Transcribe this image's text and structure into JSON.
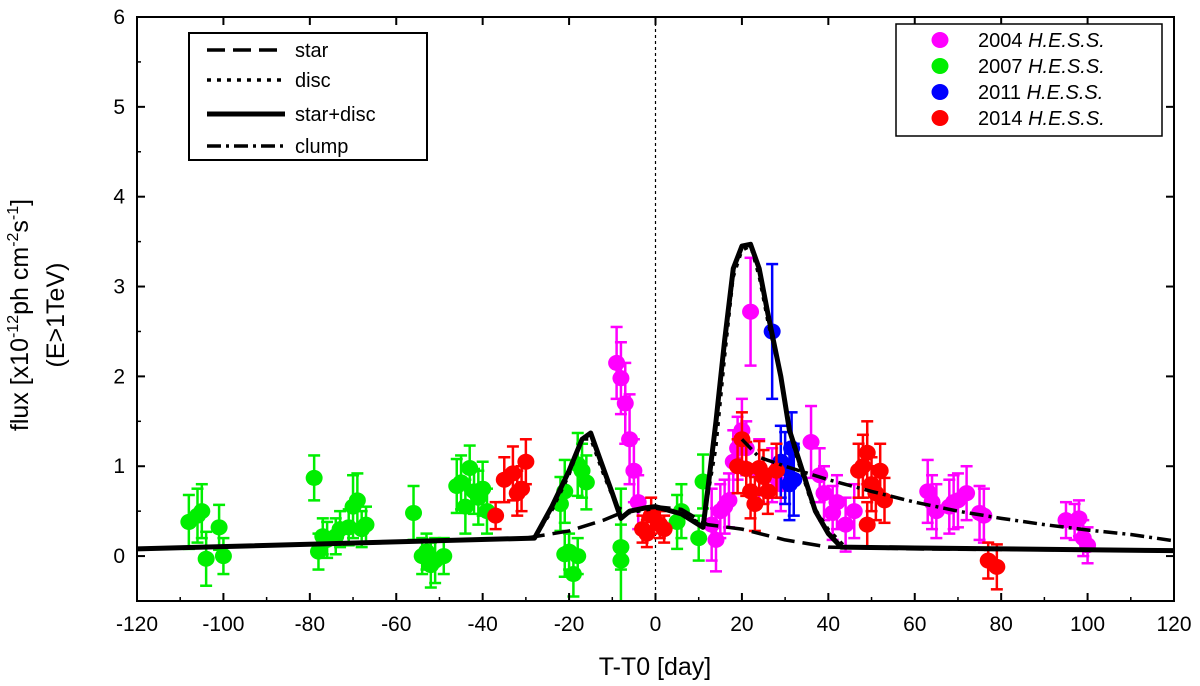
{
  "chart_data": {
    "type": "scatter",
    "xlabel": "T-T0 [day]",
    "ylabel_line1_parts": [
      "flux [x10",
      "-12",
      "ph cm",
      "-2",
      "s",
      "-1",
      "]"
    ],
    "ylabel_line2": "(E>1TeV)",
    "xlim": [
      -120,
      120
    ],
    "ylim": [
      -0.5,
      6
    ],
    "xticks": [
      -120,
      -100,
      -80,
      -60,
      -40,
      -20,
      0,
      20,
      40,
      60,
      80,
      100,
      120
    ],
    "yticks": [
      0,
      1,
      2,
      3,
      4,
      5,
      6
    ],
    "vline_x": 0,
    "models_legend": {
      "star": "star",
      "disc": "disc",
      "star_disc": "star+disc",
      "clump": "clump"
    },
    "models": {
      "star": [
        [
          -120,
          0.08
        ],
        [
          -30,
          0.2
        ],
        [
          -20,
          0.28
        ],
        [
          -12,
          0.4
        ],
        [
          -8,
          0.48
        ],
        [
          0,
          0.55
        ],
        [
          6,
          0.52
        ],
        [
          12,
          0.35
        ],
        [
          20,
          0.3
        ],
        [
          30,
          0.18
        ],
        [
          40,
          0.1
        ],
        [
          60,
          0.08
        ],
        [
          120,
          0.06
        ]
      ],
      "disc": [
        [
          -120,
          0.08
        ],
        [
          -28,
          0.2
        ],
        [
          -24,
          0.5
        ],
        [
          -20,
          0.9
        ],
        [
          -17,
          1.3
        ],
        [
          -15,
          1.3
        ],
        [
          -12,
          0.9
        ],
        [
          -9,
          0.55
        ],
        [
          -6,
          0.48
        ],
        [
          0,
          0.53
        ],
        [
          6,
          0.48
        ],
        [
          11,
          0.35
        ],
        [
          14,
          1.2
        ],
        [
          16,
          2.2
        ],
        [
          18,
          3.1
        ],
        [
          20,
          3.4
        ],
        [
          22,
          3.45
        ],
        [
          24,
          3.1
        ],
        [
          26,
          2.6
        ],
        [
          29,
          2.0
        ],
        [
          32,
          1.2
        ],
        [
          36,
          0.6
        ],
        [
          40,
          0.3
        ],
        [
          44,
          0.1
        ],
        [
          60,
          0.08
        ],
        [
          120,
          0.06
        ]
      ],
      "star_disc": [
        [
          -120,
          0.08
        ],
        [
          -28,
          0.2
        ],
        [
          -24,
          0.55
        ],
        [
          -20,
          0.95
        ],
        [
          -17,
          1.3
        ],
        [
          -15,
          1.37
        ],
        [
          -13,
          1.1
        ],
        [
          -10,
          0.7
        ],
        [
          -8,
          0.42
        ],
        [
          -6,
          0.5
        ],
        [
          -2,
          0.54
        ],
        [
          0,
          0.55
        ],
        [
          6,
          0.47
        ],
        [
          11,
          0.32
        ],
        [
          12,
          0.7
        ],
        [
          14,
          1.5
        ],
        [
          16,
          2.4
        ],
        [
          18,
          3.2
        ],
        [
          20,
          3.45
        ],
        [
          22,
          3.47
        ],
        [
          24,
          3.2
        ],
        [
          26,
          2.7
        ],
        [
          29,
          2.0
        ],
        [
          31,
          1.4
        ],
        [
          34,
          0.95
        ],
        [
          37,
          0.5
        ],
        [
          40,
          0.25
        ],
        [
          43,
          0.1
        ],
        [
          60,
          0.09
        ],
        [
          120,
          0.06
        ]
      ],
      "clump": [
        [
          20,
          1.3
        ],
        [
          24,
          1.1
        ],
        [
          30,
          1.0
        ],
        [
          40,
          0.85
        ],
        [
          50,
          0.72
        ],
        [
          60,
          0.6
        ],
        [
          70,
          0.5
        ],
        [
          80,
          0.42
        ],
        [
          90,
          0.35
        ],
        [
          100,
          0.29
        ],
        [
          110,
          0.24
        ],
        [
          120,
          0.17
        ]
      ]
    },
    "series": [
      {
        "name": "2004",
        "name_suffix": "H.E.S.S.",
        "color": "#ff00ff",
        "points": [
          [
            -9,
            2.15,
            0.4
          ],
          [
            -8,
            1.98,
            0.4
          ],
          [
            -7,
            1.7,
            0.45
          ],
          [
            -6,
            1.3,
            0.5
          ],
          [
            -5,
            0.95,
            0.35
          ],
          [
            -4,
            0.6,
            0.3
          ],
          [
            13,
            0.35,
            0.4
          ],
          [
            14,
            0.18,
            0.35
          ],
          [
            15,
            0.5,
            0.3
          ],
          [
            16,
            0.55,
            0.3
          ],
          [
            17,
            0.62,
            0.3
          ],
          [
            18,
            1.05,
            0.35
          ],
          [
            19,
            1.2,
            0.35
          ],
          [
            20,
            1.4,
            0.35
          ],
          [
            21,
            1.2,
            0.3
          ],
          [
            22,
            2.72,
            0.6
          ],
          [
            24,
            0.95,
            0.35
          ],
          [
            27,
            0.9,
            0.3
          ],
          [
            29,
            0.8,
            0.3
          ],
          [
            36,
            1.27,
            0.4
          ],
          [
            38,
            0.9,
            0.3
          ],
          [
            39,
            0.7,
            0.3
          ],
          [
            41,
            0.48,
            0.3
          ],
          [
            42,
            0.6,
            0.3
          ],
          [
            44,
            0.35,
            0.3
          ],
          [
            46,
            0.5,
            0.3
          ],
          [
            63,
            0.72,
            0.35
          ],
          [
            64,
            0.6,
            0.3
          ],
          [
            65,
            0.5,
            0.3
          ],
          [
            68,
            0.55,
            0.3
          ],
          [
            69,
            0.6,
            0.3
          ],
          [
            70,
            0.62,
            0.3
          ],
          [
            72,
            0.7,
            0.3
          ],
          [
            75,
            0.48,
            0.3
          ],
          [
            76,
            0.45,
            0.3
          ],
          [
            95,
            0.4,
            0.2
          ],
          [
            97,
            0.38,
            0.2
          ],
          [
            98,
            0.42,
            0.2
          ],
          [
            99,
            0.2,
            0.2
          ],
          [
            100,
            0.12,
            0.2
          ]
        ]
      },
      {
        "name": "2007",
        "name_suffix": "H.E.S.S.",
        "color": "#00ee00",
        "points": [
          [
            -108,
            0.38,
            0.3
          ],
          [
            -106,
            0.45,
            0.3
          ],
          [
            -105,
            0.5,
            0.3
          ],
          [
            -104,
            -0.03,
            0.3
          ],
          [
            -101,
            0.32,
            0.25
          ],
          [
            -100,
            0.0,
            0.2
          ],
          [
            -79,
            0.87,
            0.25
          ],
          [
            -78,
            0.05,
            0.2
          ],
          [
            -77,
            0.22,
            0.2
          ],
          [
            -76,
            0.18,
            0.2
          ],
          [
            -74,
            0.22,
            0.2
          ],
          [
            -73,
            0.3,
            0.2
          ],
          [
            -71,
            0.32,
            0.2
          ],
          [
            -70,
            0.55,
            0.35
          ],
          [
            -69,
            0.62,
            0.3
          ],
          [
            -68,
            0.3,
            0.2
          ],
          [
            -67,
            0.35,
            0.2
          ],
          [
            -56,
            0.48,
            0.3
          ],
          [
            -54,
            0.0,
            0.2
          ],
          [
            -53,
            0.05,
            0.2
          ],
          [
            -52,
            -0.1,
            0.25
          ],
          [
            -51,
            -0.05,
            0.25
          ],
          [
            -49,
            0.0,
            0.2
          ],
          [
            -46,
            0.78,
            0.3
          ],
          [
            -45,
            0.82,
            0.3
          ],
          [
            -44,
            0.55,
            0.3
          ],
          [
            -43,
            0.98,
            0.25
          ],
          [
            -42,
            0.72,
            0.25
          ],
          [
            -41,
            0.65,
            0.3
          ],
          [
            -40,
            0.75,
            0.3
          ],
          [
            -39,
            0.5,
            0.25
          ],
          [
            -22,
            0.58,
            0.3
          ],
          [
            -21,
            0.72,
            0.35
          ],
          [
            -18,
            1.02,
            0.35
          ],
          [
            -17,
            0.95,
            0.3
          ],
          [
            -16,
            0.82,
            0.3
          ],
          [
            -21,
            0.02,
            0.25
          ],
          [
            -20,
            0.05,
            0.2
          ],
          [
            -19,
            -0.2,
            0.25
          ],
          [
            -18,
            0.0,
            0.2
          ],
          [
            -8,
            0.1,
            0.25
          ],
          [
            -8,
            -0.05,
            0.8
          ],
          [
            5,
            0.38,
            0.3
          ],
          [
            6,
            0.5,
            0.3
          ],
          [
            10,
            0.2,
            0.25
          ],
          [
            11,
            0.83,
            0.3
          ]
        ]
      },
      {
        "name": "2011",
        "name_suffix": "H.E.S.S.",
        "color": "#0000ff",
        "points": [
          [
            27,
            2.5,
            0.75
          ],
          [
            29,
            1.05,
            0.4
          ],
          [
            30,
            0.98,
            0.4
          ],
          [
            31,
            0.8,
            0.4
          ],
          [
            31.5,
            1.2,
            0.4
          ],
          [
            32,
            0.85,
            0.4
          ]
        ]
      },
      {
        "name": "2014",
        "name_suffix": "H.E.S.S.",
        "color": "#ff0000",
        "points": [
          [
            -37,
            0.45,
            0.15
          ],
          [
            -35,
            0.85,
            0.25
          ],
          [
            -33,
            0.92,
            0.3
          ],
          [
            -32,
            0.7,
            0.25
          ],
          [
            -31,
            0.75,
            0.25
          ],
          [
            -30,
            1.05,
            0.25
          ],
          [
            -3,
            0.3,
            0.15
          ],
          [
            -2,
            0.25,
            0.15
          ],
          [
            -1,
            0.45,
            0.2
          ],
          [
            1,
            0.35,
            0.15
          ],
          [
            2,
            0.3,
            0.15
          ],
          [
            19,
            1.0,
            0.3
          ],
          [
            20,
            1.3,
            0.3
          ],
          [
            21,
            0.97,
            0.3
          ],
          [
            22,
            0.72,
            0.3
          ],
          [
            23,
            0.58,
            0.3
          ],
          [
            24,
            0.98,
            0.3
          ],
          [
            25,
            0.88,
            0.3
          ],
          [
            26,
            0.72,
            0.25
          ],
          [
            28,
            0.95,
            0.3
          ],
          [
            47,
            0.95,
            0.3
          ],
          [
            48,
            1.0,
            0.35
          ],
          [
            49,
            1.15,
            0.35
          ],
          [
            50,
            0.8,
            0.3
          ],
          [
            51,
            0.7,
            0.3
          ],
          [
            52,
            0.95,
            0.3
          ],
          [
            53,
            0.62,
            0.25
          ],
          [
            49,
            0.35,
            0.25
          ],
          [
            77,
            -0.05,
            0.2
          ],
          [
            79,
            -0.12,
            0.25
          ]
        ]
      }
    ]
  }
}
